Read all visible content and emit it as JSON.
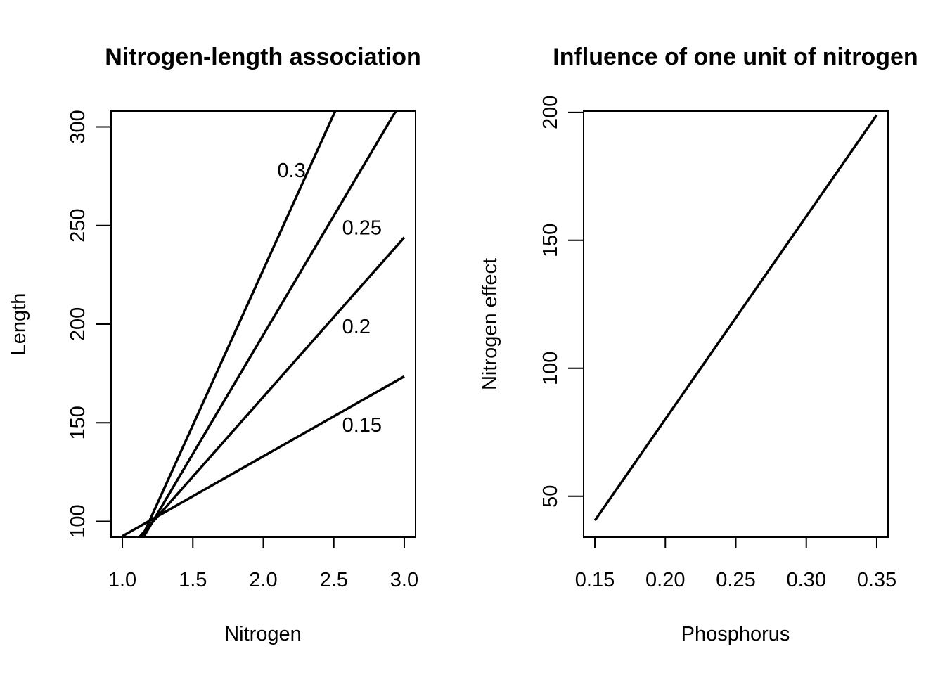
{
  "chart_data": [
    {
      "type": "line",
      "title": "Nitrogen-length association",
      "xlabel": "Nitrogen",
      "ylabel": "Length",
      "xlim": [
        0.92,
        3.08
      ],
      "ylim": [
        92,
        308
      ],
      "xticks": [
        1.0,
        1.5,
        2.0,
        2.5,
        3.0
      ],
      "xtick_labels": [
        "1.0",
        "1.5",
        "2.0",
        "2.5",
        "3.0"
      ],
      "yticks": [
        100,
        150,
        200,
        250,
        300
      ],
      "ytick_labels": [
        "100",
        "150",
        "200",
        "250",
        "300"
      ],
      "grid": false,
      "series": [
        {
          "label": "0.15",
          "x": [
            1.0,
            3.0
          ],
          "y": [
            92.5,
            173.5
          ],
          "label_at": [
            2.7,
            149
          ]
        },
        {
          "label": "0.2",
          "x": [
            1.12,
            3.0
          ],
          "y": [
            92,
            244
          ],
          "label_at": [
            2.66,
            199
          ]
        },
        {
          "label": "0.25",
          "x": [
            1.15,
            2.94
          ],
          "y": [
            92,
            308
          ],
          "label_at": [
            2.7,
            249
          ]
        },
        {
          "label": "0.3",
          "x": [
            1.14,
            2.51
          ],
          "y": [
            92,
            308
          ],
          "label_at": [
            2.2,
            278
          ]
        }
      ]
    },
    {
      "type": "line",
      "title": "Influence of one unit of nitrogen",
      "xlabel": "Phosphorus",
      "ylabel": "Nitrogen effect",
      "xlim": [
        0.142,
        0.358
      ],
      "ylim": [
        34,
        200.5
      ],
      "xticks": [
        0.15,
        0.2,
        0.25,
        0.3,
        0.35
      ],
      "xtick_labels": [
        "0.15",
        "0.20",
        "0.25",
        "0.30",
        "0.35"
      ],
      "yticks": [
        50,
        100,
        150,
        200
      ],
      "ytick_labels": [
        "50",
        "100",
        "150",
        "200"
      ],
      "grid": false,
      "series": [
        {
          "x": [
            0.15,
            0.35
          ],
          "y": [
            40.5,
            199
          ]
        }
      ]
    }
  ]
}
